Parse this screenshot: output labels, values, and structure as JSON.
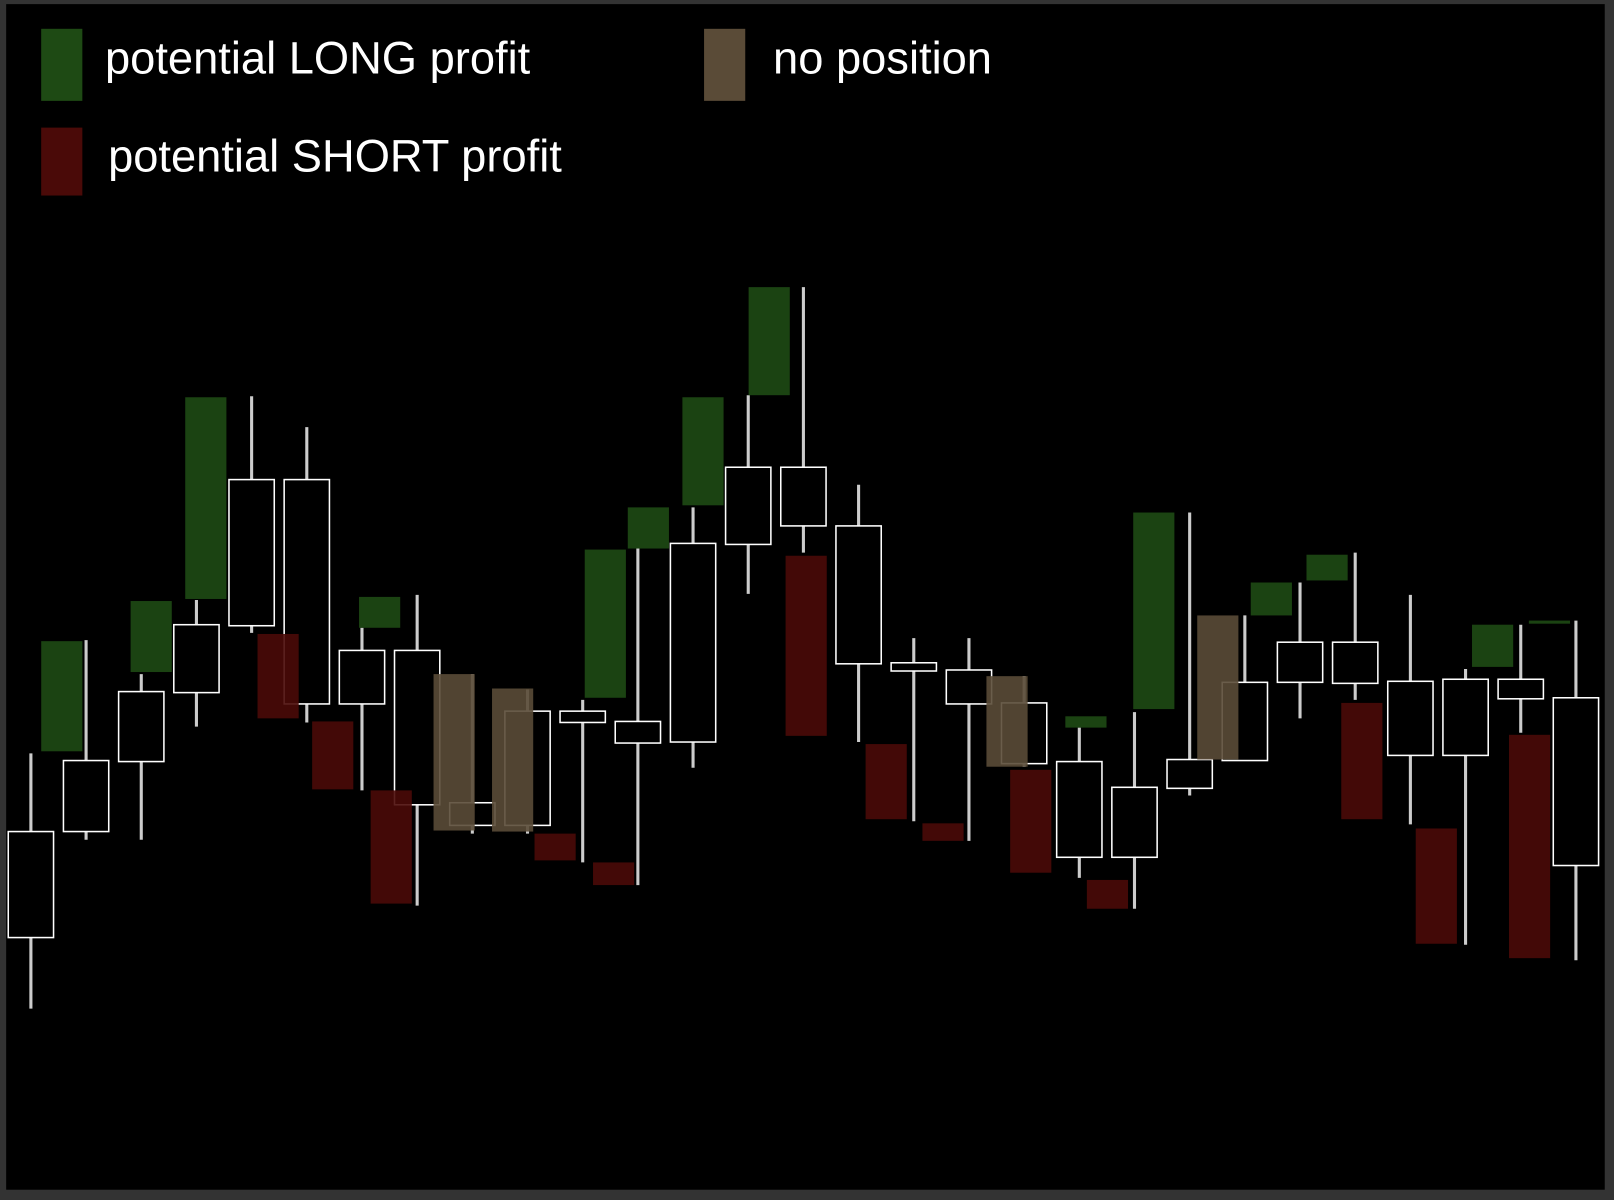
{
  "chart_data": {
    "type": "candlestick",
    "xlim": [
      -0.56,
      28.69
    ],
    "ylim": [
      0,
      1166
    ],
    "candles": {
      "high": [
        434,
        544,
        511,
        583,
        781,
        751,
        556,
        588,
        511,
        496,
        486,
        633,
        673,
        782,
        887,
        695,
        546,
        546,
        509,
        459,
        474,
        668,
        568,
        600,
        629,
        588,
        516,
        559,
        563
      ],
      "low": [
        186,
        350,
        350,
        460,
        551,
        464,
        398,
        286,
        356,
        356,
        328,
        306,
        420,
        589,
        629,
        445,
        368,
        349,
        421,
        313,
        283,
        393,
        427,
        468,
        486,
        365,
        248,
        454,
        233
      ],
      "body_high": [
        358,
        427,
        494,
        559,
        700,
        700,
        534,
        534,
        386,
        475,
        475,
        465,
        638,
        712,
        712,
        655,
        522,
        515,
        483,
        426,
        401,
        428,
        503,
        542,
        542,
        504,
        506,
        506,
        488
      ],
      "body_low": [
        255,
        358,
        426,
        493,
        558,
        482,
        482,
        384,
        364,
        364,
        464,
        444,
        445,
        637,
        655,
        521,
        514,
        482,
        424,
        333,
        333,
        400,
        427,
        503,
        502,
        432,
        432,
        487,
        325
      ],
      "color": "#ffffff"
    },
    "series": [
      {
        "name": "potential LONG profit",
        "color": "#1e4a14",
        "x": [
          0.56,
          2.18,
          3.17,
          6.32,
          10.41,
          11.19,
          12.18,
          13.38,
          19.12,
          20.35,
          22.48,
          23.49,
          26.49,
          27.52
        ],
        "top": [
          543,
          582,
          780,
          586,
          632,
          673,
          780,
          887,
          470,
          668,
          600,
          627,
          559,
          563
        ],
        "bottom": [
          436,
          513,
          584,
          556,
          488,
          633,
          675,
          782,
          459,
          477,
          568,
          602,
          518,
          560
        ]
      },
      {
        "name": "potential SHORT profit",
        "color": "#4a0a08",
        "x": [
          4.48,
          5.47,
          6.53,
          9.5,
          10.56,
          14.05,
          15.5,
          16.53,
          18.12,
          19.51,
          24.12,
          25.47,
          27.16
        ],
        "top": [
          550,
          465,
          398,
          356,
          328,
          626,
          443,
          366,
          418,
          311,
          483,
          361,
          452
        ],
        "bottom": [
          468,
          399,
          288,
          330,
          306,
          451,
          370,
          349,
          318,
          283,
          370,
          249,
          235
        ]
      },
      {
        "name": "no position",
        "color": "#5a4b37",
        "x": [
          7.67,
          8.73,
          17.69,
          21.51
        ],
        "top": [
          511,
          497,
          509,
          568
        ],
        "bottom": [
          359,
          358,
          421,
          428
        ]
      }
    ]
  }
}
